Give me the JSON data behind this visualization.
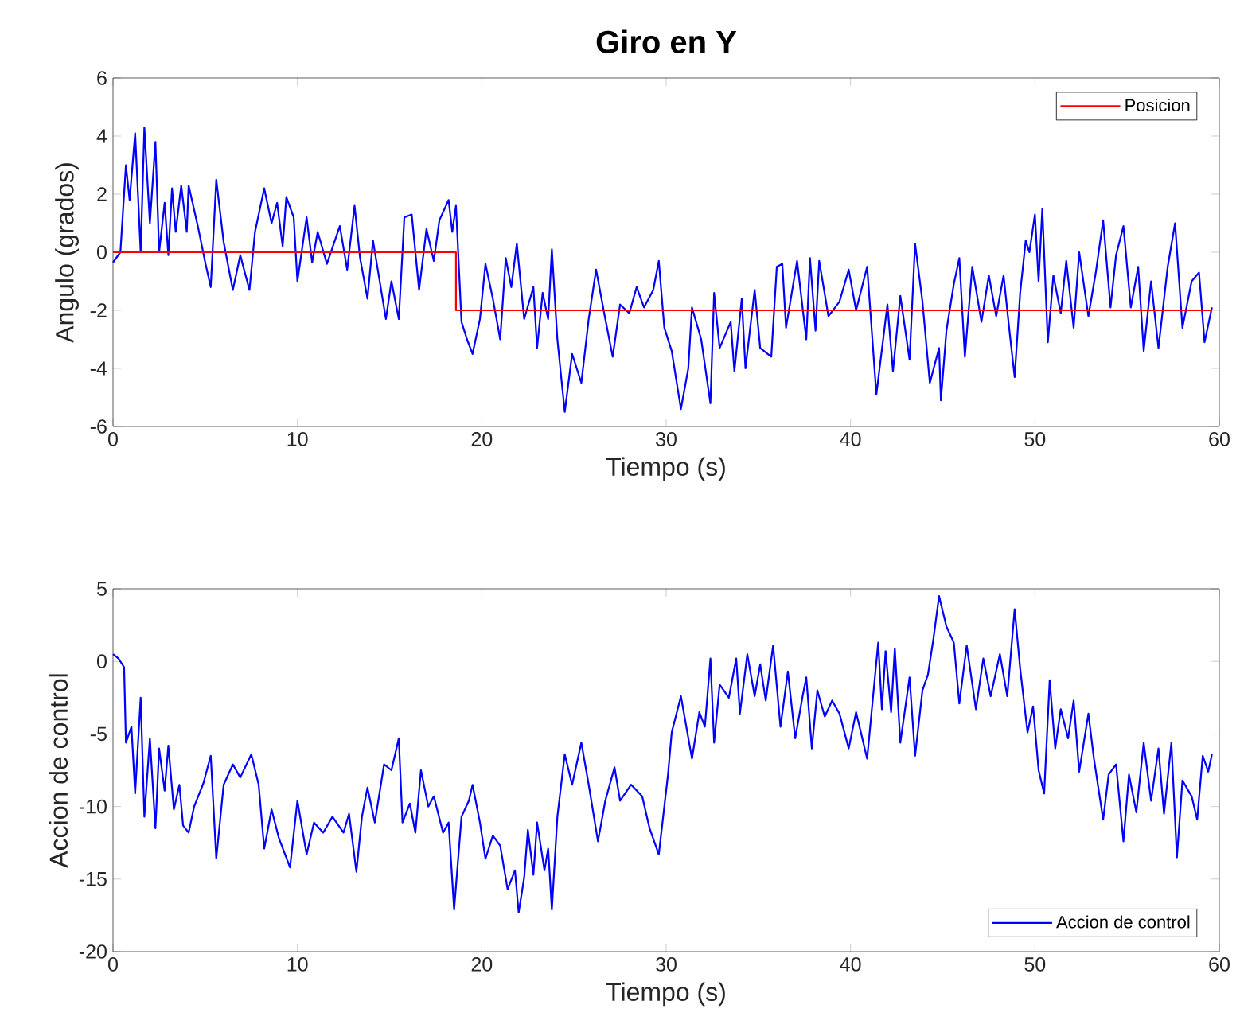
{
  "chart_data": [
    {
      "type": "line",
      "title": "Giro en Y",
      "xlabel": "Tiempo (s)",
      "ylabel": "Angulo (grados)",
      "xlim": [
        0,
        60
      ],
      "xticks": [
        0,
        10,
        20,
        30,
        40,
        50,
        60
      ],
      "ylim": [
        -6,
        6
      ],
      "yticks": [
        -6,
        -4,
        -2,
        0,
        2,
        4,
        6
      ],
      "legend": "top right",
      "series": [
        {
          "color": "#0000ff",
          "x": [
            0,
            0.4,
            0.7,
            0.9,
            1.2,
            1.5,
            1.7,
            2.0,
            2.3,
            2.5,
            2.8,
            3.0,
            3.2,
            3.4,
            3.7,
            4.0,
            4.1,
            4.6,
            5.0,
            5.3,
            5.6,
            6.0,
            6.5,
            6.9,
            7.4,
            7.7,
            8.2,
            8.6,
            8.9,
            9.2,
            9.4,
            9.8,
            10.0,
            10.5,
            10.8,
            11.1,
            11.6,
            12.3,
            12.7,
            13.1,
            13.4,
            13.8,
            14.1,
            14.8,
            15.1,
            15.5,
            15.8,
            16.2,
            16.6,
            17.0,
            17.4,
            17.7,
            18.2,
            18.4,
            18.6,
            18.9,
            19.2,
            19.5,
            19.9,
            20.2,
            20.6,
            21.0,
            21.3,
            21.6,
            21.9,
            22.3,
            22.8,
            23.0,
            23.3,
            23.6,
            23.8,
            24.1,
            24.5,
            24.9,
            25.4,
            25.8,
            26.2,
            26.7,
            27.1,
            27.5,
            28.0,
            28.4,
            28.8,
            29.3,
            29.6,
            29.9,
            30.3,
            30.8,
            31.2,
            31.4,
            31.9,
            32.4,
            32.6,
            32.9,
            33.5,
            33.7,
            34.1,
            34.3,
            34.8,
            35.1,
            35.7,
            36.0,
            36.3,
            36.5,
            37.1,
            37.6,
            37.8,
            38.1,
            38.3,
            38.8,
            39.4,
            39.9,
            40.3,
            40.9,
            41.4,
            42.0,
            42.3,
            42.7,
            43.2,
            43.5,
            43.9,
            44.3,
            44.8,
            44.9,
            45.2,
            45.6,
            45.9,
            46.2,
            46.6,
            47.1,
            47.5,
            47.9,
            48.3,
            48.6,
            48.9,
            49.2,
            49.5,
            49.7,
            50.0,
            50.2,
            50.4,
            50.7,
            51.0,
            51.4,
            51.7,
            52.1,
            52.4,
            52.9,
            53.3,
            53.7,
            54.1,
            54.4,
            54.8,
            55.2,
            55.6,
            55.9,
            56.3,
            56.7,
            57.2,
            57.6,
            58.0,
            58.5,
            58.9,
            59.2,
            59.6
          ],
          "values": [
            -0.35,
            0,
            3.0,
            1.8,
            4.1,
            0,
            4.3,
            1.0,
            3.8,
            0,
            1.7,
            -0.1,
            2.2,
            0.7,
            2.3,
            0.7,
            2.3,
            0.9,
            -0.35,
            -1.2,
            2.5,
            0.35,
            -1.3,
            -0.1,
            -1.3,
            0.7,
            2.2,
            1.0,
            1.7,
            0.2,
            1.9,
            1.2,
            -1.0,
            1.2,
            -0.35,
            0.7,
            -0.4,
            0.9,
            -0.6,
            1.6,
            -0.2,
            -1.6,
            0.4,
            -2.3,
            -1.0,
            -2.3,
            1.2,
            1.3,
            -1.3,
            0.8,
            -0.3,
            1.1,
            1.8,
            0.7,
            1.6,
            -2.4,
            -3.0,
            -3.5,
            -2.3,
            -0.4,
            -1.6,
            -3.0,
            -0.2,
            -1.2,
            0.3,
            -2.3,
            -1.2,
            -3.3,
            -1.4,
            -2.3,
            0.1,
            -3.0,
            -5.5,
            -3.5,
            -4.5,
            -2.3,
            -0.6,
            -2.3,
            -3.6,
            -1.8,
            -2.1,
            -1.2,
            -1.9,
            -1.3,
            -0.3,
            -2.6,
            -3.4,
            -5.4,
            -4.0,
            -1.9,
            -3.0,
            -5.2,
            -1.4,
            -3.3,
            -2.4,
            -4.1,
            -1.6,
            -4.0,
            -1.3,
            -3.3,
            -3.6,
            -0.5,
            -0.4,
            -2.6,
            -0.3,
            -3.0,
            -0.2,
            -2.7,
            -0.3,
            -2.2,
            -1.7,
            -0.6,
            -2.0,
            -0.5,
            -4.9,
            -1.8,
            -4.1,
            -1.5,
            -3.7,
            0.3,
            -1.7,
            -4.5,
            -3.3,
            -5.1,
            -2.7,
            -1.1,
            -0.2,
            -3.6,
            -0.5,
            -2.4,
            -0.8,
            -2.2,
            -0.8,
            -2.6,
            -4.3,
            -1.4,
            0.4,
            0.0,
            1.3,
            -1.0,
            1.5,
            -3.1,
            -0.8,
            -2.1,
            -0.3,
            -2.6,
            0.0,
            -2.2,
            -0.7,
            1.1,
            -1.9,
            -0.1,
            0.9,
            -1.9,
            -0.5,
            -3.4,
            -1.0,
            -3.3,
            -0.5,
            1.0,
            -2.6,
            -1.0,
            -0.7,
            -3.1,
            -1.9
          ]
        },
        {
          "name": "Posicion",
          "color": "#ff0000",
          "x": [
            0,
            18.6,
            18.6,
            59.6
          ],
          "values": [
            0,
            0,
            -2,
            -2
          ]
        }
      ]
    },
    {
      "type": "line",
      "xlabel": "Tiempo (s)",
      "ylabel": "Accion de control",
      "xlim": [
        0,
        60
      ],
      "xticks": [
        0,
        10,
        20,
        30,
        40,
        50,
        60
      ],
      "ylim": [
        -20,
        5
      ],
      "yticks": [
        -20,
        -15,
        -10,
        -5,
        0,
        5
      ],
      "legend": "bottom right",
      "series": [
        {
          "name": "Accion de control",
          "color": "#0000ff",
          "x": [
            0,
            0.3,
            0.6,
            0.7,
            1.0,
            1.2,
            1.5,
            1.7,
            2.0,
            2.3,
            2.5,
            2.8,
            3.0,
            3.3,
            3.6,
            3.8,
            4.1,
            4.4,
            4.9,
            5.3,
            5.6,
            6.0,
            6.5,
            6.9,
            7.5,
            7.9,
            8.2,
            8.6,
            9.0,
            9.6,
            10.0,
            10.5,
            10.9,
            11.4,
            11.9,
            12.5,
            12.8,
            13.2,
            13.5,
            13.8,
            14.2,
            14.7,
            15.1,
            15.5,
            15.7,
            16.1,
            16.4,
            16.7,
            17.1,
            17.4,
            17.9,
            18.2,
            18.5,
            18.9,
            19.3,
            19.5,
            19.9,
            20.2,
            20.6,
            21.0,
            21.4,
            21.8,
            22.0,
            22.3,
            22.5,
            22.8,
            23.0,
            23.4,
            23.6,
            23.8,
            24.1,
            24.5,
            24.9,
            25.4,
            25.8,
            26.3,
            26.7,
            27.2,
            27.5,
            28.1,
            28.7,
            29.1,
            29.6,
            30.1,
            30.3,
            30.8,
            31.4,
            31.8,
            32.1,
            32.4,
            32.6,
            32.9,
            33.4,
            33.8,
            34.0,
            34.4,
            34.8,
            35.1,
            35.4,
            35.8,
            36.2,
            36.6,
            37.0,
            37.4,
            37.6,
            37.9,
            38.2,
            38.6,
            39.0,
            39.4,
            39.9,
            40.3,
            40.9,
            41.2,
            41.5,
            41.7,
            41.9,
            42.2,
            42.4,
            42.7,
            43.2,
            43.5,
            43.9,
            44.2,
            44.5,
            44.8,
            45.2,
            45.6,
            45.9,
            46.3,
            46.8,
            47.2,
            47.6,
            48.1,
            48.5,
            48.9,
            49.2,
            49.6,
            49.9,
            50.2,
            50.5,
            50.8,
            51.1,
            51.4,
            51.8,
            52.1,
            52.4,
            52.9,
            53.2,
            53.7,
            54.0,
            54.4,
            54.8,
            55.1,
            55.5,
            55.9,
            56.3,
            56.7,
            57.0,
            57.4,
            57.7,
            58.0,
            58.5,
            58.8,
            59.1,
            59.4,
            59.6
          ],
          "values": [
            0.5,
            0.2,
            -0.4,
            -5.6,
            -4.5,
            -9.1,
            -2.5,
            -10.7,
            -5.3,
            -11.5,
            -6.0,
            -8.9,
            -5.8,
            -10.2,
            -8.5,
            -11.3,
            -11.8,
            -10.0,
            -8.4,
            -6.5,
            -13.6,
            -8.5,
            -7.1,
            -8.0,
            -6.4,
            -8.5,
            -12.9,
            -10.2,
            -12.2,
            -14.2,
            -9.6,
            -13.3,
            -11.1,
            -11.8,
            -10.7,
            -11.8,
            -10.5,
            -14.5,
            -10.7,
            -8.7,
            -11.1,
            -7.1,
            -7.5,
            -5.3,
            -11.1,
            -9.8,
            -11.8,
            -7.5,
            -10.0,
            -9.3,
            -11.8,
            -11.1,
            -17.1,
            -10.7,
            -9.6,
            -8.5,
            -11.1,
            -13.6,
            -12.0,
            -12.7,
            -15.7,
            -14.4,
            -17.3,
            -14.9,
            -11.6,
            -14.7,
            -11.1,
            -14.4,
            -12.9,
            -17.1,
            -10.7,
            -6.4,
            -8.5,
            -5.6,
            -8.5,
            -12.4,
            -9.6,
            -7.3,
            -9.6,
            -8.5,
            -9.3,
            -11.5,
            -13.3,
            -7.8,
            -4.9,
            -2.4,
            -6.7,
            -3.5,
            -4.5,
            0.2,
            -5.6,
            -1.6,
            -2.5,
            0.2,
            -3.6,
            0.5,
            -2.4,
            -0.2,
            -2.7,
            1.1,
            -4.5,
            -0.7,
            -5.3,
            -2.4,
            -1.1,
            -6.0,
            -2.0,
            -3.8,
            -2.7,
            -3.6,
            -6.0,
            -3.5,
            -6.7,
            -2.7,
            1.3,
            -3.3,
            0.7,
            -3.5,
            0.9,
            -5.6,
            -1.1,
            -6.5,
            -2.0,
            -0.9,
            1.6,
            4.5,
            2.4,
            1.3,
            -2.9,
            1.1,
            -3.3,
            0.2,
            -2.4,
            0.5,
            -2.4,
            3.6,
            -0.5,
            -4.9,
            -3.1,
            -7.5,
            -9.1,
            -1.3,
            -6.0,
            -3.3,
            -5.3,
            -2.7,
            -7.6,
            -3.6,
            -6.7,
            -10.9,
            -7.8,
            -7.1,
            -12.4,
            -7.8,
            -10.4,
            -5.6,
            -9.6,
            -6.0,
            -10.5,
            -5.6,
            -13.5,
            -8.2,
            -9.3,
            -10.9,
            -6.5,
            -7.6,
            -6.4
          ]
        }
      ]
    }
  ]
}
